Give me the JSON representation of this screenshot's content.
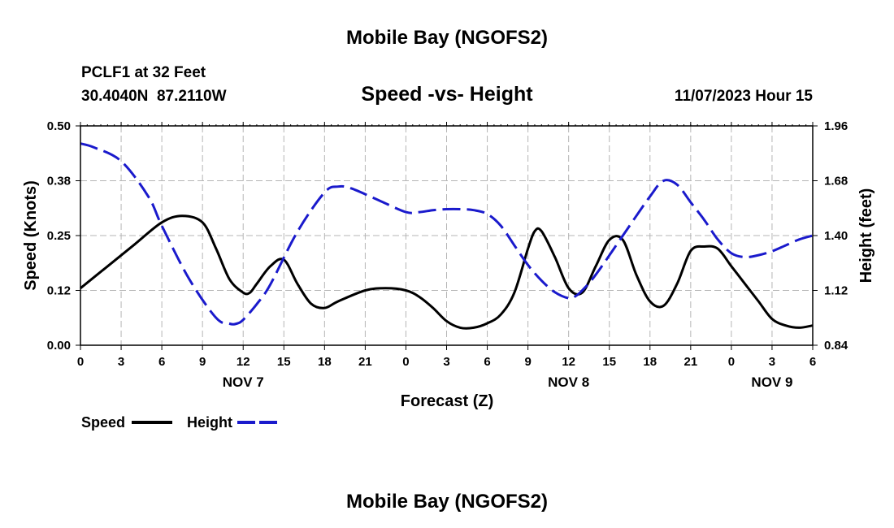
{
  "chart_data": {
    "type": "line",
    "title": "Mobile Bay (NGOFS2)",
    "subtitle": "Speed -vs- Height",
    "station": "PCLF1 at 32 Feet",
    "location": "30.4040N  87.2110W",
    "timestamp": "11/07/2023 Hour 15",
    "xlabel": "Forecast (Z)",
    "ylabel_left": "Speed (Knots)",
    "ylabel_right": "Height (feet)",
    "x_range": [
      0,
      54
    ],
    "x_ticks": [
      {
        "x": 0,
        "label": "0"
      },
      {
        "x": 3,
        "label": "3"
      },
      {
        "x": 6,
        "label": "6"
      },
      {
        "x": 9,
        "label": "9"
      },
      {
        "x": 12,
        "label": "12"
      },
      {
        "x": 15,
        "label": "15"
      },
      {
        "x": 18,
        "label": "18"
      },
      {
        "x": 21,
        "label": "21"
      },
      {
        "x": 24,
        "label": "0"
      },
      {
        "x": 27,
        "label": "3"
      },
      {
        "x": 30,
        "label": "6"
      },
      {
        "x": 33,
        "label": "9"
      },
      {
        "x": 36,
        "label": "12"
      },
      {
        "x": 39,
        "label": "15"
      },
      {
        "x": 42,
        "label": "18"
      },
      {
        "x": 45,
        "label": "21"
      },
      {
        "x": 48,
        "label": "0"
      },
      {
        "x": 51,
        "label": "3"
      },
      {
        "x": 54,
        "label": "6"
      }
    ],
    "day_labels": [
      {
        "x": 12,
        "label": "NOV 7"
      },
      {
        "x": 36,
        "label": "NOV 8"
      },
      {
        "x": 51,
        "label": "NOV 9"
      }
    ],
    "y_left": {
      "range": [
        0,
        0.5
      ],
      "ticks": [
        0.0,
        0.125,
        0.25,
        0.375,
        0.5
      ],
      "tick_labels": [
        "0.00",
        "0.12",
        "0.25",
        "0.38",
        "0.50"
      ]
    },
    "y_right": {
      "range": [
        0.84,
        1.96
      ],
      "ticks": [
        0.84,
        1.12,
        1.4,
        1.68,
        1.96
      ],
      "tick_labels": [
        "0.84",
        "1.12",
        "1.40",
        "1.68",
        "1.96"
      ]
    },
    "grid": true,
    "legend_position": "bottom-left",
    "series": [
      {
        "name": "Speed",
        "axis": "left",
        "color": "#000000",
        "dash": "solid",
        "x": [
          0,
          2,
          4,
          6,
          7.5,
          9,
          10,
          11,
          12,
          12.5,
          13,
          14,
          15,
          16,
          17,
          18,
          19,
          21,
          22.5,
          24,
          25,
          26,
          27,
          28,
          29,
          30,
          31,
          32,
          33,
          33.5,
          34,
          35,
          36,
          37,
          38,
          39,
          40,
          41,
          42,
          43,
          44,
          45,
          46,
          47,
          48,
          49,
          50,
          51,
          52,
          53,
          54
        ],
        "values": [
          0.13,
          0.18,
          0.23,
          0.28,
          0.295,
          0.28,
          0.22,
          0.15,
          0.12,
          0.12,
          0.14,
          0.18,
          0.195,
          0.14,
          0.095,
          0.085,
          0.1,
          0.125,
          0.13,
          0.125,
          0.11,
          0.085,
          0.055,
          0.04,
          0.04,
          0.05,
          0.07,
          0.12,
          0.22,
          0.26,
          0.26,
          0.2,
          0.13,
          0.12,
          0.18,
          0.24,
          0.24,
          0.16,
          0.1,
          0.09,
          0.14,
          0.215,
          0.225,
          0.22,
          0.18,
          0.14,
          0.1,
          0.06,
          0.045,
          0.04,
          0.045
        ]
      },
      {
        "name": "Height",
        "axis": "right",
        "color": "#1a1acc",
        "dash": "dashed",
        "x": [
          0,
          1,
          3,
          5,
          6,
          8,
          10,
          11,
          11.5,
          12,
          13,
          14,
          16,
          18,
          19,
          20,
          22,
          24,
          25,
          26,
          27,
          28,
          29,
          30,
          31,
          32,
          33,
          34,
          35,
          36,
          36.5,
          37,
          38,
          40,
          42,
          43,
          44,
          45,
          46,
          47,
          48,
          49,
          50,
          51,
          52,
          53,
          54
        ],
        "values": [
          1.87,
          1.85,
          1.78,
          1.6,
          1.45,
          1.18,
          0.98,
          0.95,
          0.95,
          0.97,
          1.05,
          1.15,
          1.42,
          1.62,
          1.65,
          1.64,
          1.58,
          1.52,
          1.52,
          1.53,
          1.535,
          1.535,
          1.53,
          1.51,
          1.45,
          1.35,
          1.25,
          1.17,
          1.11,
          1.08,
          1.09,
          1.12,
          1.2,
          1.4,
          1.6,
          1.68,
          1.66,
          1.57,
          1.48,
          1.38,
          1.31,
          1.29,
          1.3,
          1.32,
          1.35,
          1.38,
          1.4
        ]
      }
    ],
    "footer_title": "Mobile Bay (NGOFS2)"
  }
}
